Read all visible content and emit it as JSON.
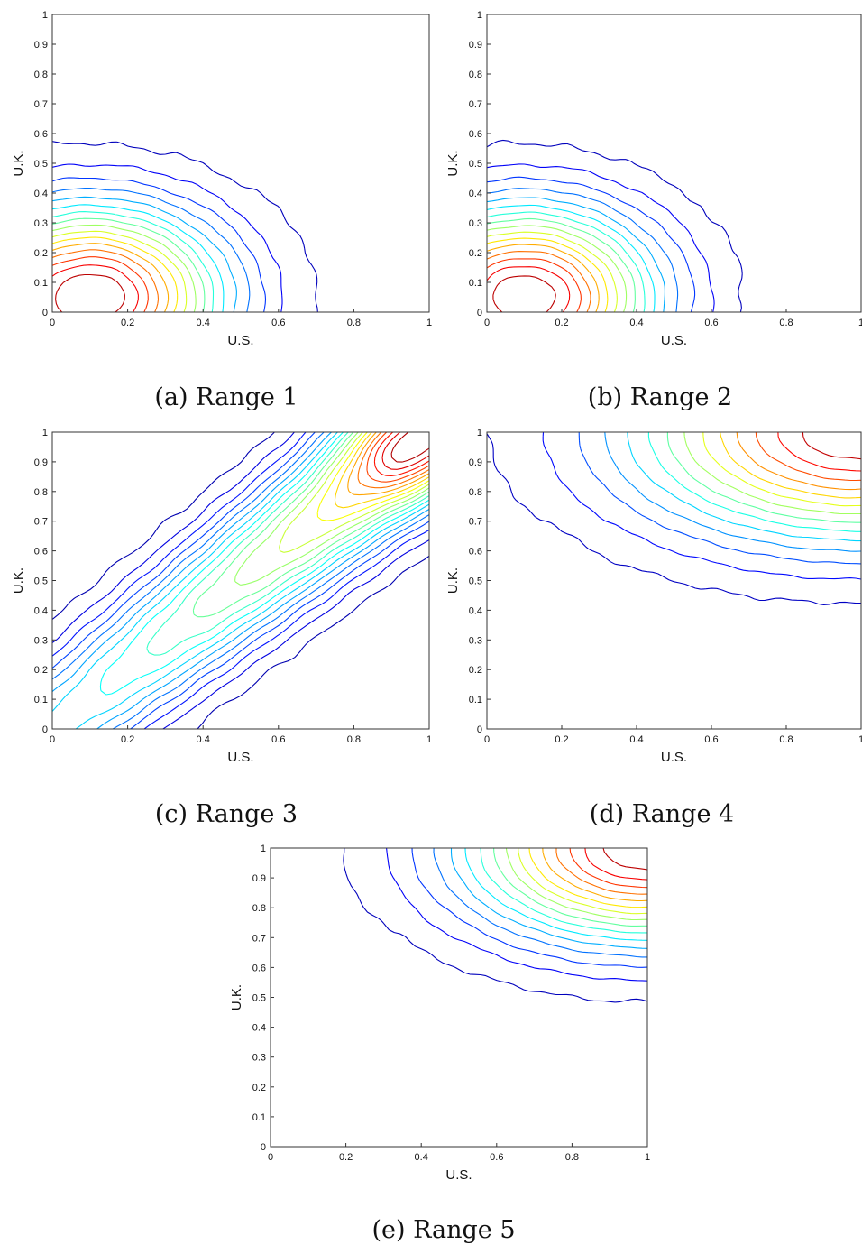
{
  "chart_data": [
    {
      "type": "contour",
      "caption": "(a) Range 1",
      "xlabel": "U.S.",
      "ylabel": "U.K.",
      "xlim": [
        0,
        1
      ],
      "ylim": [
        0,
        1
      ],
      "xticks": [
        "0",
        "0.2",
        "0.4",
        "0.6",
        "0.8",
        "1"
      ],
      "yticks": [
        "0",
        "0.1",
        "0.2",
        "0.3",
        "0.4",
        "0.5",
        "0.6",
        "0.7",
        "0.8",
        "0.9",
        "1"
      ],
      "pattern": "single peak near the lower-left corner (U.S. ≈ 0.1, U.K. ≈ 0.05), contours fanning outward toward the upper right",
      "peak": [
        0.1,
        0.05
      ],
      "levels": 16
    },
    {
      "type": "contour",
      "caption": "(b) Range 2",
      "xlabel": "U.S.",
      "ylabel": "U.K.",
      "xlim": [
        0,
        1
      ],
      "ylim": [
        0,
        1
      ],
      "xticks": [
        "0",
        "0.2",
        "0.4",
        "0.6",
        "0.8",
        "1"
      ],
      "yticks": [
        "0",
        "0.1",
        "0.2",
        "0.3",
        "0.4",
        "0.5",
        "0.6",
        "0.7",
        "0.8",
        "0.9",
        "1"
      ],
      "pattern": "single peak near the lower-left corner, very similar to Range 1",
      "peak": [
        0.1,
        0.05
      ],
      "levels": 16
    },
    {
      "type": "contour",
      "caption": "(c) Range 3",
      "xlabel": "U.S.",
      "ylabel": "U.K.",
      "xlim": [
        0,
        1
      ],
      "ylim": [
        0,
        1
      ],
      "xticks": [
        "0",
        "0.2",
        "0.4",
        "0.6",
        "0.8",
        "1"
      ],
      "yticks": [
        "0",
        "0.1",
        "0.2",
        "0.3",
        "0.4",
        "0.5",
        "0.6",
        "0.7",
        "0.8",
        "0.9",
        "1"
      ],
      "pattern": "ridge along the diagonal (U.S. ≈ U.K.) with a maximum near the upper-right corner",
      "peak": [
        0.95,
        0.95
      ],
      "levels": 20
    },
    {
      "type": "contour",
      "caption": "(d) Range 4",
      "xlabel": "U.S.",
      "ylabel": "U.K.",
      "xlim": [
        0,
        1
      ],
      "ylim": [
        0,
        1
      ],
      "xticks": [
        "0",
        "0.2",
        "0.4",
        "0.6",
        "0.8",
        "1"
      ],
      "yticks": [
        "0",
        "0.1",
        "0.2",
        "0.3",
        "0.4",
        "0.5",
        "0.6",
        "0.7",
        "0.8",
        "0.9",
        "1"
      ],
      "pattern": "peak at the upper-right corner, outer contours widely spaced",
      "peak": [
        1.0,
        1.0
      ],
      "levels": 14
    },
    {
      "type": "contour",
      "caption": "(e) Range 5",
      "xlabel": "U.S.",
      "ylabel": "U.K.",
      "xlim": [
        0,
        1
      ],
      "ylim": [
        0,
        1
      ],
      "xticks": [
        "0",
        "0.2",
        "0.4",
        "0.6",
        "0.8",
        "1"
      ],
      "yticks": [
        "0",
        "0.1",
        "0.2",
        "0.3",
        "0.4",
        "0.5",
        "0.6",
        "0.7",
        "0.8",
        "0.9",
        "1"
      ],
      "pattern": "sharp peak at the upper-right corner, outer contours widely spaced",
      "peak": [
        1.0,
        1.0
      ],
      "levels": 16
    }
  ]
}
